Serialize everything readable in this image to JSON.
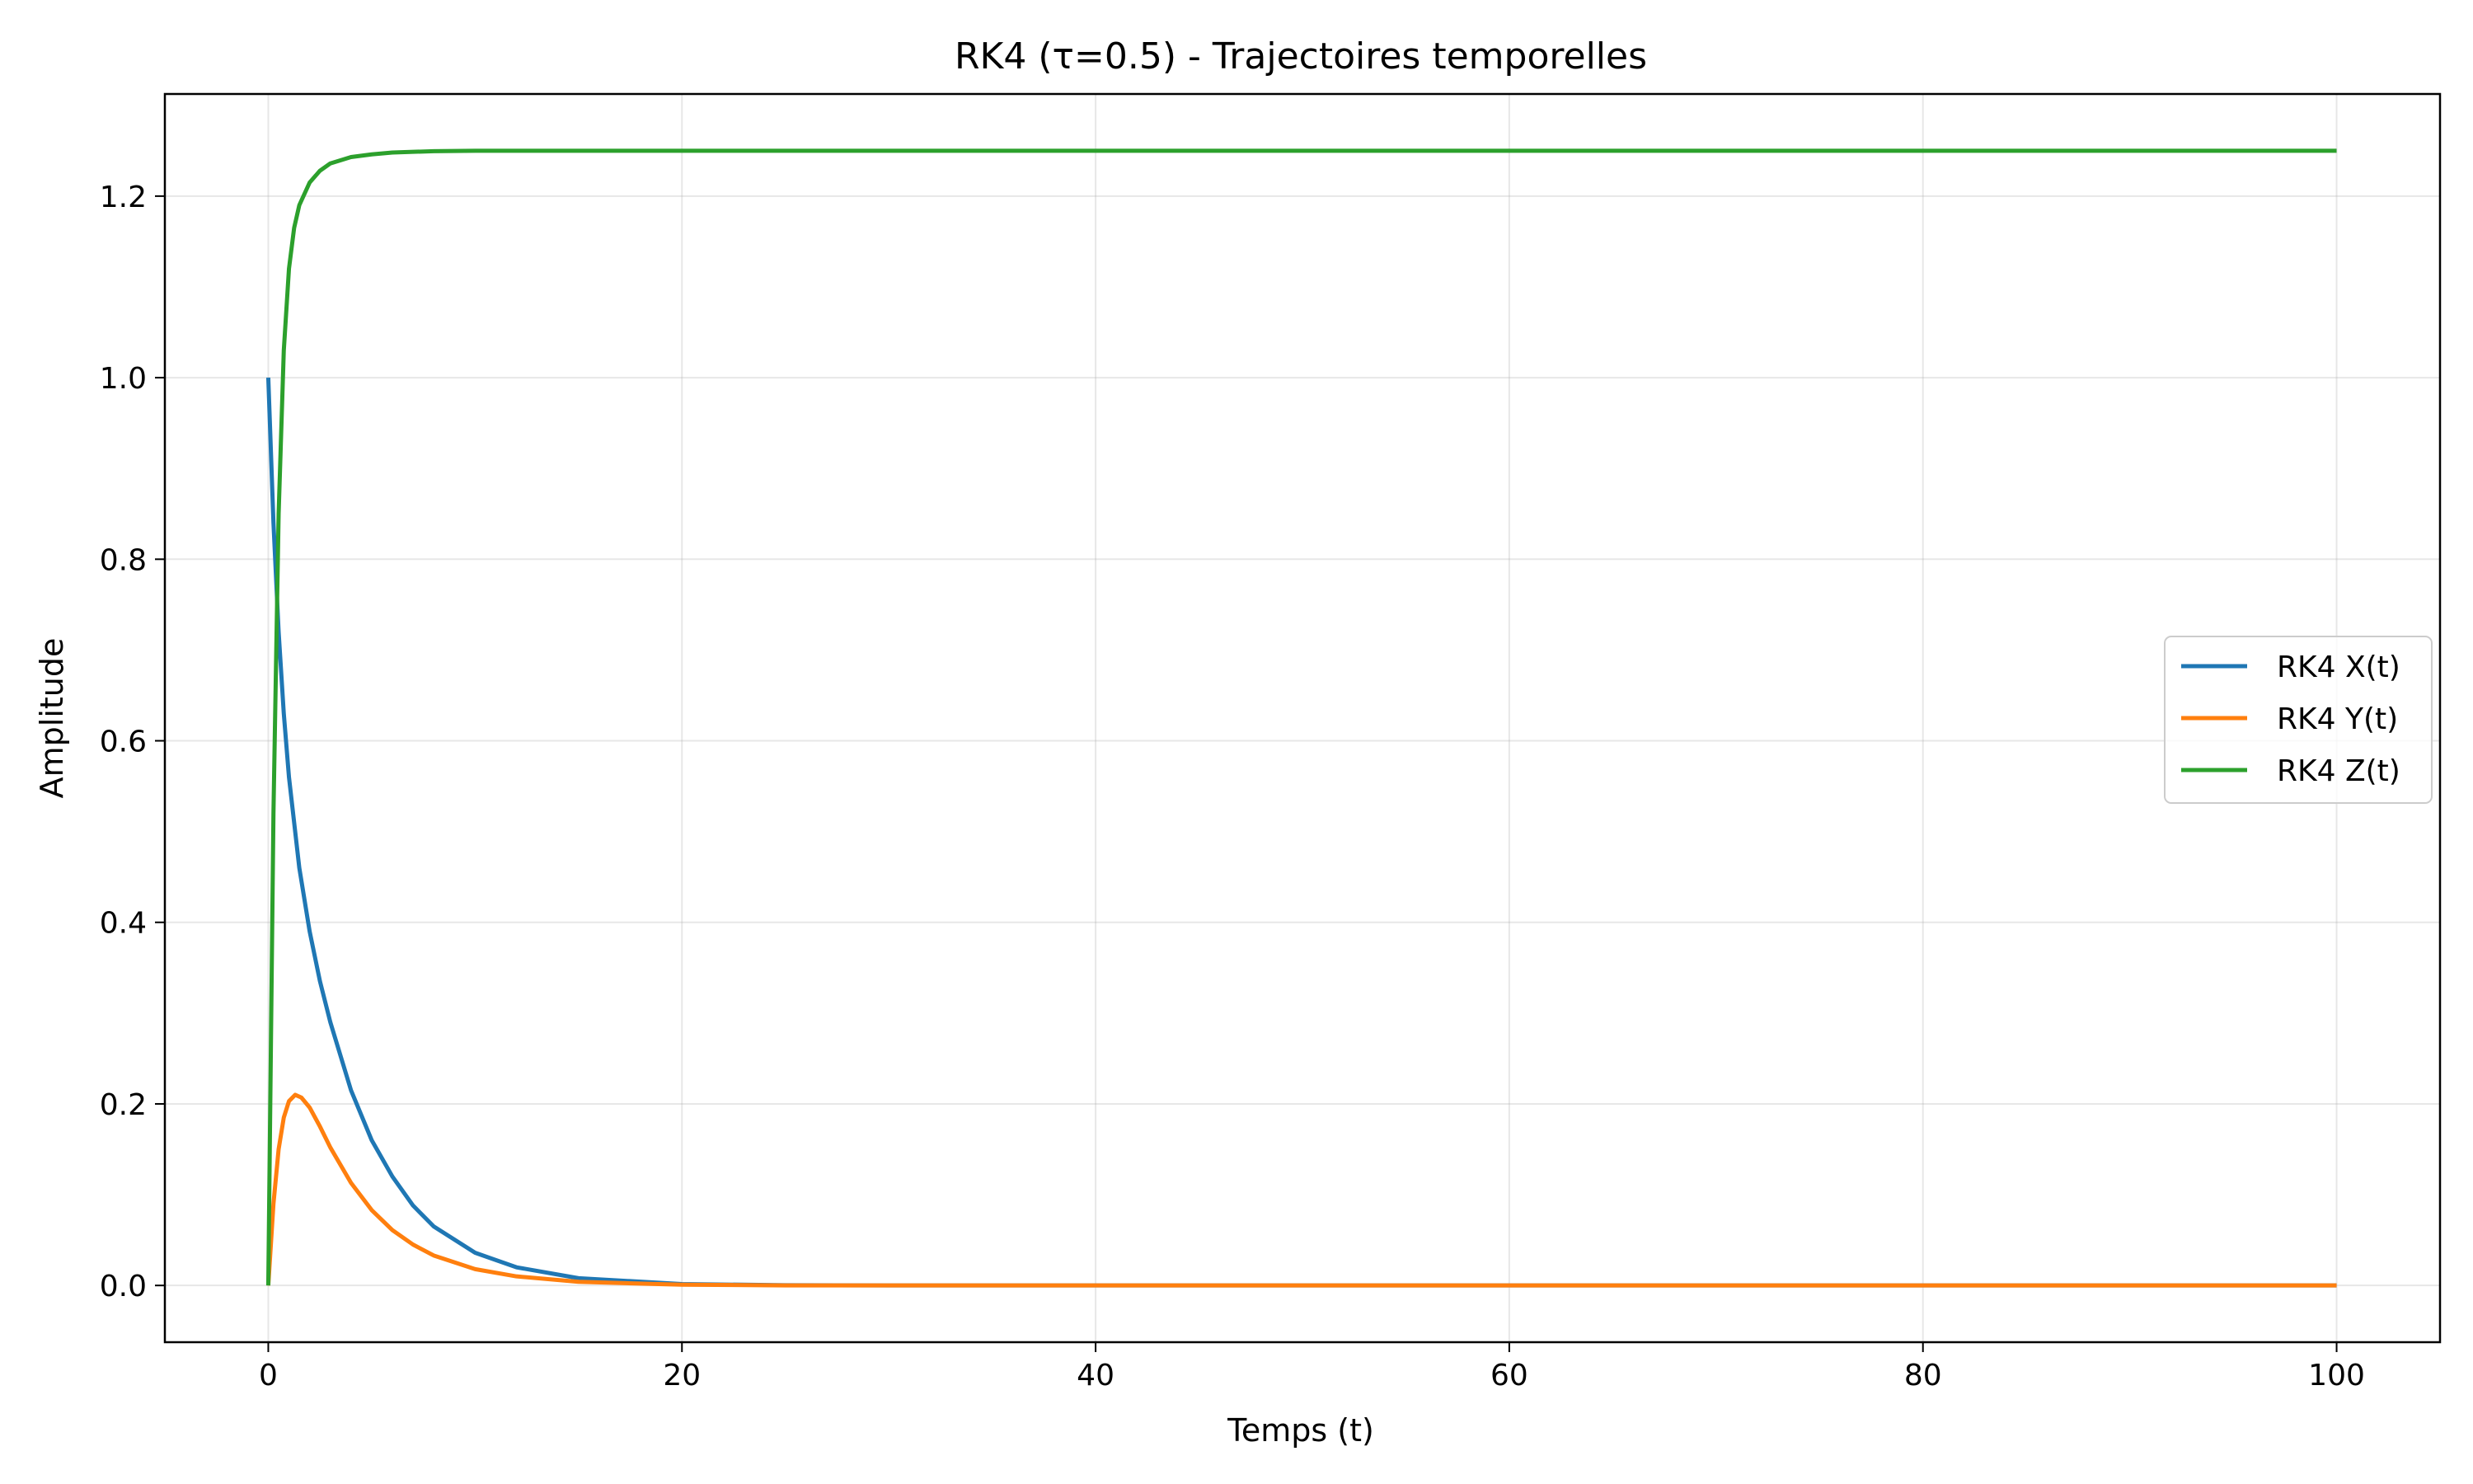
{
  "chart_data": {
    "type": "line",
    "title": "RK4 (τ=0.5) - Trajectoires temporelles",
    "xlabel": "Temps (t)",
    "ylabel": "Amplitude",
    "xlim": [
      -5,
      105
    ],
    "ylim": [
      -0.0625,
      1.3125
    ],
    "xticks": [
      0,
      20,
      40,
      60,
      80,
      100
    ],
    "xtick_labels": [
      "0",
      "20",
      "40",
      "60",
      "80",
      "100"
    ],
    "yticks": [
      0.0,
      0.2,
      0.4,
      0.6,
      0.8,
      1.0,
      1.2
    ],
    "ytick_labels": [
      "0.0",
      "0.2",
      "0.4",
      "0.6",
      "0.8",
      "1.0",
      "1.2"
    ],
    "grid": true,
    "legend_position": "center-right",
    "series": [
      {
        "name": "RK4 X(t)",
        "color": "#1f77b4",
        "x": [
          0,
          0.25,
          0.5,
          0.75,
          1,
          1.5,
          2,
          2.5,
          3,
          4,
          5,
          6,
          7,
          8,
          10,
          12,
          15,
          20,
          25,
          30,
          40,
          60,
          80,
          100
        ],
        "y": [
          1.0,
          0.84,
          0.72,
          0.63,
          0.56,
          0.46,
          0.39,
          0.335,
          0.29,
          0.215,
          0.16,
          0.12,
          0.088,
          0.065,
          0.036,
          0.02,
          0.008,
          0.0015,
          0.0003,
          0.0,
          0.0,
          0.0,
          0.0,
          0.0
        ]
      },
      {
        "name": "RK4 Y(t)",
        "color": "#ff7f0e",
        "x": [
          0,
          0.25,
          0.5,
          0.75,
          1,
          1.3,
          1.6,
          2,
          2.5,
          3,
          4,
          5,
          6,
          7,
          8,
          10,
          12,
          15,
          20,
          25,
          30,
          40,
          60,
          80,
          100
        ],
        "y": [
          0.0,
          0.09,
          0.15,
          0.185,
          0.203,
          0.21,
          0.207,
          0.196,
          0.175,
          0.152,
          0.113,
          0.083,
          0.061,
          0.045,
          0.033,
          0.018,
          0.01,
          0.004,
          0.0008,
          0.0001,
          0.0,
          0.0,
          0.0,
          0.0,
          0.0
        ]
      },
      {
        "name": "RK4 Z(t)",
        "color": "#2ca02c",
        "x": [
          0,
          0.25,
          0.5,
          0.75,
          1,
          1.25,
          1.5,
          2,
          2.5,
          3,
          4,
          5,
          6,
          8,
          10,
          15,
          20,
          30,
          40,
          60,
          80,
          100
        ],
        "y": [
          0.0,
          0.52,
          0.85,
          1.03,
          1.12,
          1.165,
          1.19,
          1.215,
          1.228,
          1.236,
          1.243,
          1.246,
          1.248,
          1.2495,
          1.25,
          1.25,
          1.25,
          1.25,
          1.25,
          1.25,
          1.25,
          1.25
        ]
      }
    ]
  }
}
